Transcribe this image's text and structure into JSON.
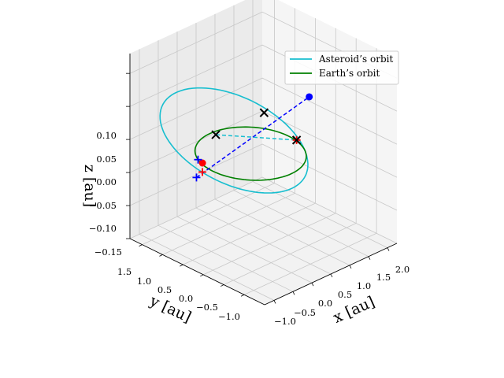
{
  "chart_data": {
    "type": "line",
    "projection": "3d",
    "title": "",
    "xlabel": "x [au]",
    "ylabel": "y [au]",
    "zlabel": "z [au]",
    "xlim": [
      -1.25,
      2.25
    ],
    "ylim": [
      -1.5,
      1.8
    ],
    "zlim": [
      -0.15,
      0.13
    ],
    "x_ticks": [
      "−1.0",
      "−0.5",
      "0.0",
      "0.5",
      "1.0",
      "1.5",
      "2.0"
    ],
    "y_ticks": [
      "1.5",
      "1.0",
      "0.5",
      "0.0",
      "−0.5",
      "−1.0"
    ],
    "z_ticks": [
      "0.10",
      "0.05",
      "0.00",
      "−0.05",
      "−0.10",
      "−0.15"
    ],
    "grid": true,
    "legend_position": "upper right",
    "series": [
      {
        "name": "Asteroid’s orbit",
        "color": "#17becf",
        "style": "solid",
        "orbit": {
          "a": 1.35,
          "e": 0.28,
          "inclination_deg": 10,
          "node_deg": 120,
          "perihelion_arg_deg": 230
        }
      },
      {
        "name": "Earth’s orbit",
        "color": "#008000",
        "style": "solid",
        "orbit": {
          "a": 1.0,
          "e": 0.0,
          "inclination_deg": 0,
          "node_deg": 0,
          "perihelion_arg_deg": 0
        }
      }
    ],
    "segments": [
      {
        "color": "#0000ff",
        "style": "dashed",
        "from": [
          -0.3,
          1.05,
          -0.06
        ],
        "to": [
          1.82,
          0.25,
          0.03
        ]
      },
      {
        "color": "#17becf",
        "style": "dashed",
        "from": [
          0.05,
          0.9,
          0.0
        ],
        "to": [
          1.0,
          -0.2,
          0.0
        ]
      }
    ],
    "markers": [
      {
        "shape": "dot",
        "color": "#ff0000",
        "x": 0.0,
        "y": 1.18,
        "z": -0.05
      },
      {
        "shape": "dot",
        "color": "#0000ff",
        "x": 1.82,
        "y": 0.25,
        "z": 0.03
      },
      {
        "shape": "plus",
        "color": "#0000ff",
        "x": -0.15,
        "y": 1.15,
        "z": -0.04
      },
      {
        "shape": "plus",
        "color": "#0000ff",
        "x": -0.3,
        "y": 1.05,
        "z": -0.06
      },
      {
        "shape": "plus",
        "color": "#ff0000",
        "x": -0.25,
        "y": 0.95,
        "z": -0.05
      },
      {
        "shape": "plus",
        "color": "#ff0000",
        "x": 1.0,
        "y": -0.2,
        "z": 0.0
      },
      {
        "shape": "cross",
        "color": "#000000",
        "x": 0.05,
        "y": 0.9,
        "z": 0.0
      },
      {
        "shape": "cross",
        "color": "#000000",
        "x": 0.95,
        "y": 0.55,
        "z": 0.02
      },
      {
        "shape": "cross",
        "color": "#000000",
        "x": 1.0,
        "y": -0.2,
        "z": 0.0
      }
    ]
  }
}
